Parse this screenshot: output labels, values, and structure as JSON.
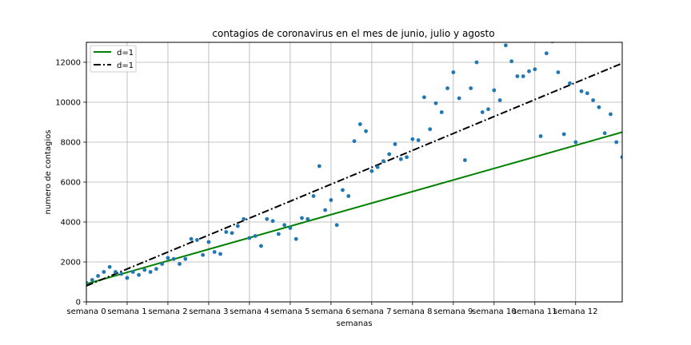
{
  "chart_data": {
    "type": "scatter",
    "title": "contagios de coronavirus en el mes de junio, julio y agosto",
    "xlabel": "semanas",
    "ylabel": "numero de contagios",
    "xlim": [
      0,
      92
    ],
    "ylim": [
      0,
      13000
    ],
    "grid": true,
    "legend_placement": "top-left",
    "x_ticks": [
      {
        "value": 0,
        "label": "semana 0"
      },
      {
        "value": 7,
        "label": "semana 1"
      },
      {
        "value": 14,
        "label": "semana 2"
      },
      {
        "value": 21,
        "label": "semana 3"
      },
      {
        "value": 28,
        "label": "semana 4"
      },
      {
        "value": 35,
        "label": "semana 5"
      },
      {
        "value": 42,
        "label": "semana 6"
      },
      {
        "value": 49,
        "label": "semana 7"
      },
      {
        "value": 56,
        "label": "semana 8"
      },
      {
        "value": 63,
        "label": "semana 9"
      },
      {
        "value": 70,
        "label": "semana 10"
      },
      {
        "value": 77,
        "label": "semana 11"
      },
      {
        "value": 84,
        "label": "semana 12"
      }
    ],
    "y_ticks": [
      0,
      2000,
      4000,
      6000,
      8000,
      10000,
      12000
    ],
    "scatter": {
      "color": "#1f77b4",
      "points": [
        [
          0,
          950
        ],
        [
          1,
          1100
        ],
        [
          2,
          1300
        ],
        [
          3,
          1500
        ],
        [
          4,
          1750
        ],
        [
          5,
          1500
        ],
        [
          6,
          1400
        ],
        [
          7,
          1200
        ],
        [
          8,
          1500
        ],
        [
          9,
          1350
        ],
        [
          10,
          1600
        ],
        [
          11,
          1500
        ],
        [
          12,
          1650
        ],
        [
          13,
          1900
        ],
        [
          14,
          2200
        ],
        [
          15,
          2150
        ],
        [
          16,
          1900
        ],
        [
          17,
          2150
        ],
        [
          18,
          3150
        ],
        [
          19,
          3100
        ],
        [
          20,
          2350
        ],
        [
          21,
          3000
        ],
        [
          22,
          2500
        ],
        [
          23,
          2400
        ],
        [
          24,
          3500
        ],
        [
          25,
          3450
        ],
        [
          26,
          3800
        ],
        [
          27,
          4150
        ],
        [
          28,
          3200
        ],
        [
          29,
          3300
        ],
        [
          30,
          2800
        ],
        [
          31,
          4150
        ],
        [
          32,
          4050
        ],
        [
          33,
          3400
        ],
        [
          34,
          3850
        ],
        [
          35,
          3700
        ],
        [
          36,
          3150
        ],
        [
          37,
          4200
        ],
        [
          38,
          4150
        ],
        [
          39,
          5300
        ],
        [
          40,
          6800
        ],
        [
          41,
          4600
        ],
        [
          42,
          5100
        ],
        [
          43,
          3850
        ],
        [
          44,
          5600
        ],
        [
          45,
          5300
        ],
        [
          46,
          8050
        ],
        [
          47,
          8900
        ],
        [
          48,
          8550
        ],
        [
          49,
          6550
        ],
        [
          50,
          6750
        ],
        [
          51,
          7050
        ],
        [
          52,
          7400
        ],
        [
          53,
          7900
        ],
        [
          54,
          7150
        ],
        [
          55,
          7250
        ],
        [
          56,
          8150
        ],
        [
          57,
          8100
        ],
        [
          58,
          10250
        ],
        [
          59,
          8650
        ],
        [
          60,
          9950
        ],
        [
          61,
          9500
        ],
        [
          62,
          10700
        ],
        [
          63,
          11500
        ],
        [
          64,
          10200
        ],
        [
          65,
          7100
        ],
        [
          66,
          10700
        ],
        [
          67,
          12000
        ],
        [
          68,
          9500
        ],
        [
          69,
          9650
        ],
        [
          70,
          10600
        ],
        [
          71,
          10100
        ],
        [
          72,
          12850
        ],
        [
          73,
          12050
        ],
        [
          74,
          11300
        ],
        [
          75,
          11300
        ],
        [
          76,
          11550
        ],
        [
          77,
          11650
        ],
        [
          78,
          8300
        ],
        [
          79,
          12450
        ],
        [
          80,
          13050
        ],
        [
          81,
          11500
        ],
        [
          82,
          8400
        ],
        [
          83,
          10950
        ],
        [
          84,
          8000
        ],
        [
          85,
          10550
        ],
        [
          86,
          10450
        ],
        [
          87,
          10100
        ],
        [
          88,
          9750
        ],
        [
          89,
          8450
        ],
        [
          90,
          9400
        ],
        [
          91,
          8000
        ],
        [
          92,
          7250
        ]
      ]
    },
    "series": [
      {
        "name": "d=1",
        "color": "#008000",
        "style": "solid",
        "x": [
          0,
          92
        ],
        "y": [
          900,
          8500
        ]
      },
      {
        "name": "d=1",
        "color": "#000000",
        "style": "dashdot",
        "x": [
          0,
          92
        ],
        "y": [
          800,
          11950
        ]
      }
    ]
  }
}
